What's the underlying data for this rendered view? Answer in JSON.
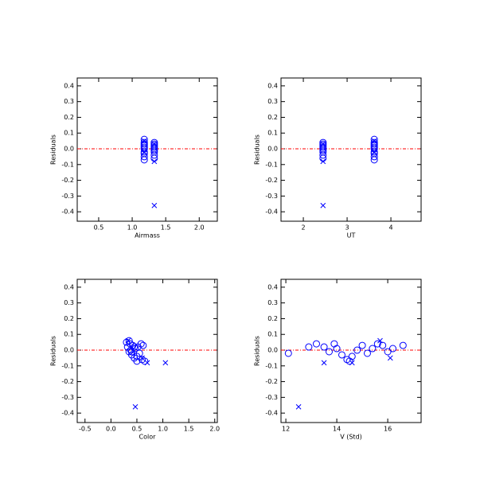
{
  "chart_data": [
    {
      "type": "scatter",
      "xlabel": "Airmass",
      "ylabel": "Residuals",
      "xlim": [
        0.18,
        2.27
      ],
      "ylim": [
        -0.46,
        0.45
      ],
      "xticks": [
        0.5,
        {
          "value": 1,
          "label": "1.0"
        },
        1.5,
        {
          "value": 2,
          "label": "2.0"
        }
      ],
      "yticks": [
        0.4,
        0.3,
        0.2,
        0.1,
        {
          "value": 0,
          "label": "0.0"
        },
        -0.1,
        -0.2,
        -0.3,
        -0.4
      ],
      "reference_line": 0,
      "reference_color": "#ff0000",
      "series": [
        {
          "marker": "o",
          "color": "#0000ff",
          "x": [
            1.18,
            1.18,
            1.18,
            1.18,
            1.18,
            1.18,
            1.18,
            1.18,
            1.18,
            1.18,
            1.33,
            1.33,
            1.33,
            1.33,
            1.33,
            1.33,
            1.33,
            1.33,
            1.33
          ],
          "values": [
            0.06,
            0.04,
            0.03,
            0.02,
            0.01,
            0,
            -0.02,
            -0.03,
            -0.05,
            -0.07,
            0.04,
            0.03,
            0.02,
            0.01,
            0,
            -0.01,
            -0.02,
            -0.04,
            -0.06
          ]
        },
        {
          "marker": "x",
          "color": "#0000ff",
          "x": [
            1.18,
            1.18,
            1.33,
            1.33,
            1.33
          ],
          "values": [
            0.05,
            -0.02,
            -0.08,
            -0.36,
            0.03
          ]
        }
      ]
    },
    {
      "type": "scatter",
      "xlabel": "UT",
      "ylabel": "Residuals",
      "xlim": [
        1.49,
        4.69
      ],
      "ylim": [
        -0.46,
        0.45
      ],
      "xticks": [
        2,
        3,
        4
      ],
      "yticks": [
        0.4,
        0.3,
        0.2,
        0.1,
        {
          "value": 0,
          "label": "0.0"
        },
        -0.1,
        -0.2,
        -0.3,
        -0.4
      ],
      "reference_line": 0,
      "reference_color": "#ff0000",
      "series": [
        {
          "marker": "o",
          "color": "#0000ff",
          "x": [
            3.62,
            3.62,
            3.62,
            3.62,
            3.62,
            3.62,
            3.62,
            3.62,
            3.62,
            3.62,
            2.45,
            2.45,
            2.45,
            2.45,
            2.45,
            2.45,
            2.45,
            2.45,
            2.45
          ],
          "values": [
            0.06,
            0.04,
            0.03,
            0.02,
            0.01,
            0,
            -0.02,
            -0.03,
            -0.05,
            -0.07,
            0.04,
            0.03,
            0.02,
            0.01,
            0,
            -0.01,
            -0.02,
            -0.04,
            -0.06
          ]
        },
        {
          "marker": "x",
          "color": "#0000ff",
          "x": [
            3.62,
            3.62,
            2.45,
            2.45,
            2.45
          ],
          "values": [
            0.05,
            -0.02,
            -0.08,
            -0.36,
            0.03
          ]
        }
      ]
    },
    {
      "type": "scatter",
      "xlabel": "Color",
      "ylabel": "Residuals",
      "xlim": [
        -0.65,
        2.05
      ],
      "ylim": [
        -0.46,
        0.45
      ],
      "xticks": [
        -0.5,
        {
          "value": 0,
          "label": "0.0"
        },
        0.5,
        {
          "value": 1,
          "label": "1.0"
        },
        1.5,
        {
          "value": 2,
          "label": "2.0"
        }
      ],
      "yticks": [
        0.4,
        0.3,
        0.2,
        0.1,
        {
          "value": 0,
          "label": "0.0"
        },
        -0.1,
        -0.2,
        -0.3,
        -0.4
      ],
      "reference_line": 0,
      "reference_color": "#ff0000",
      "series": [
        {
          "marker": "o",
          "color": "#0000ff",
          "x": [
            0.3,
            0.32,
            0.35,
            0.37,
            0.38,
            0.4,
            0.42,
            0.45,
            0.47,
            0.5,
            0.52,
            0.55,
            0.58,
            0.6,
            0.65,
            0.35,
            0.4,
            0.45,
            0.5,
            0.62
          ],
          "values": [
            0.05,
            0.02,
            -0.01,
            0.04,
            0,
            -0.03,
            0.03,
            -0.05,
            0.01,
            -0.07,
            0.02,
            -0.02,
            0.04,
            -0.06,
            -0.07,
            0.06,
            -0.01,
            0.02,
            -0.04,
            0.03
          ]
        },
        {
          "marker": "x",
          "color": "#0000ff",
          "x": [
            0.33,
            0.47,
            0.7,
            1.05,
            0.6
          ],
          "values": [
            0.06,
            -0.36,
            -0.08,
            -0.08,
            -0.05
          ]
        }
      ]
    },
    {
      "type": "scatter",
      "xlabel": "V (Std)",
      "ylabel": "Residuals",
      "xlim": [
        11.81,
        17.31
      ],
      "ylim": [
        -0.46,
        0.45
      ],
      "xticks": [
        12,
        14,
        16
      ],
      "yticks": [
        0.4,
        0.3,
        0.2,
        0.1,
        {
          "value": 0,
          "label": "0.0"
        },
        -0.1,
        -0.2,
        -0.3,
        -0.4
      ],
      "reference_line": 0,
      "reference_color": "#ff0000",
      "series": [
        {
          "marker": "o",
          "color": "#0000ff",
          "x": [
            12.1,
            12.9,
            13.2,
            13.5,
            13.7,
            13.9,
            14.0,
            14.2,
            14.4,
            14.6,
            14.8,
            15.0,
            15.2,
            15.4,
            15.6,
            15.8,
            16.0,
            16.2,
            16.6,
            14.5
          ],
          "values": [
            -0.02,
            0.02,
            0.04,
            0.02,
            -0.01,
            0.04,
            0.01,
            -0.03,
            -0.06,
            -0.04,
            0,
            0.03,
            -0.02,
            0.01,
            0.04,
            0.03,
            -0.01,
            0.01,
            0.03,
            -0.07
          ]
        },
        {
          "marker": "x",
          "color": "#0000ff",
          "x": [
            13.5,
            12.5,
            15.7,
            16.1,
            14.6
          ],
          "values": [
            -0.08,
            -0.36,
            0.06,
            -0.05,
            -0.08
          ]
        }
      ]
    }
  ]
}
